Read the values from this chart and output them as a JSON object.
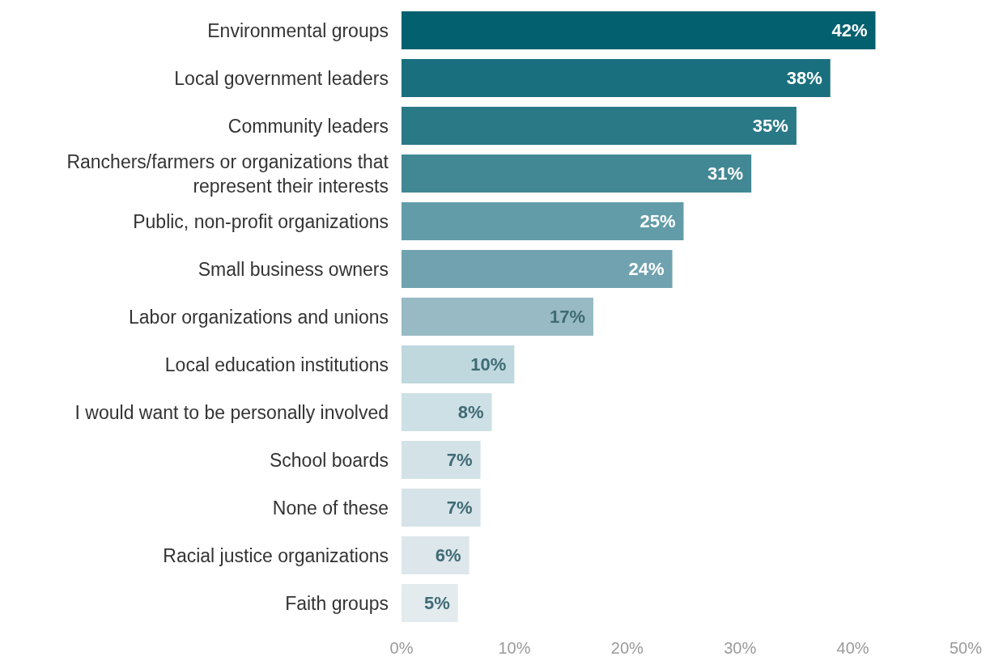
{
  "chart_data": {
    "type": "bar",
    "orientation": "horizontal",
    "categories": [
      "Environmental groups",
      "Local government leaders",
      "Community leaders",
      "Ranchers/farmers or organizations that\nrepresent their interests",
      "Public, non-profit organizations",
      "Small business owners",
      "Labor organizations and unions",
      "Local education institutions",
      "I would want to be personally involved",
      "School boards",
      "None of these",
      "Racial justice organizations",
      "Faith groups"
    ],
    "values": [
      42,
      38,
      35,
      31,
      25,
      24,
      17,
      10,
      8,
      7,
      7,
      6,
      5
    ],
    "colors": [
      "#02606f",
      "#196f7d",
      "#2a7987",
      "#428894",
      "#639ca9",
      "#70a3af",
      "#97bac4",
      "#bed8de",
      "#cde0e5",
      "#d3e2e7",
      "#d6e3e8",
      "#dde6ea",
      "#e3ebee"
    ],
    "value_labels": [
      "42%",
      "38%",
      "35%",
      "31%",
      "25%",
      "24%",
      "17%",
      "10%",
      "8%",
      "7%",
      "7%",
      "6%",
      "5%"
    ],
    "xlim": [
      0,
      50
    ],
    "xticks": [
      {
        "value": 0,
        "label": "0%"
      },
      {
        "value": 10,
        "label": "10%"
      },
      {
        "value": 20,
        "label": "20%"
      },
      {
        "value": 30,
        "label": "30%"
      },
      {
        "value": 40,
        "label": "40%"
      },
      {
        "value": 50,
        "label": "50%"
      }
    ],
    "grid": false
  }
}
